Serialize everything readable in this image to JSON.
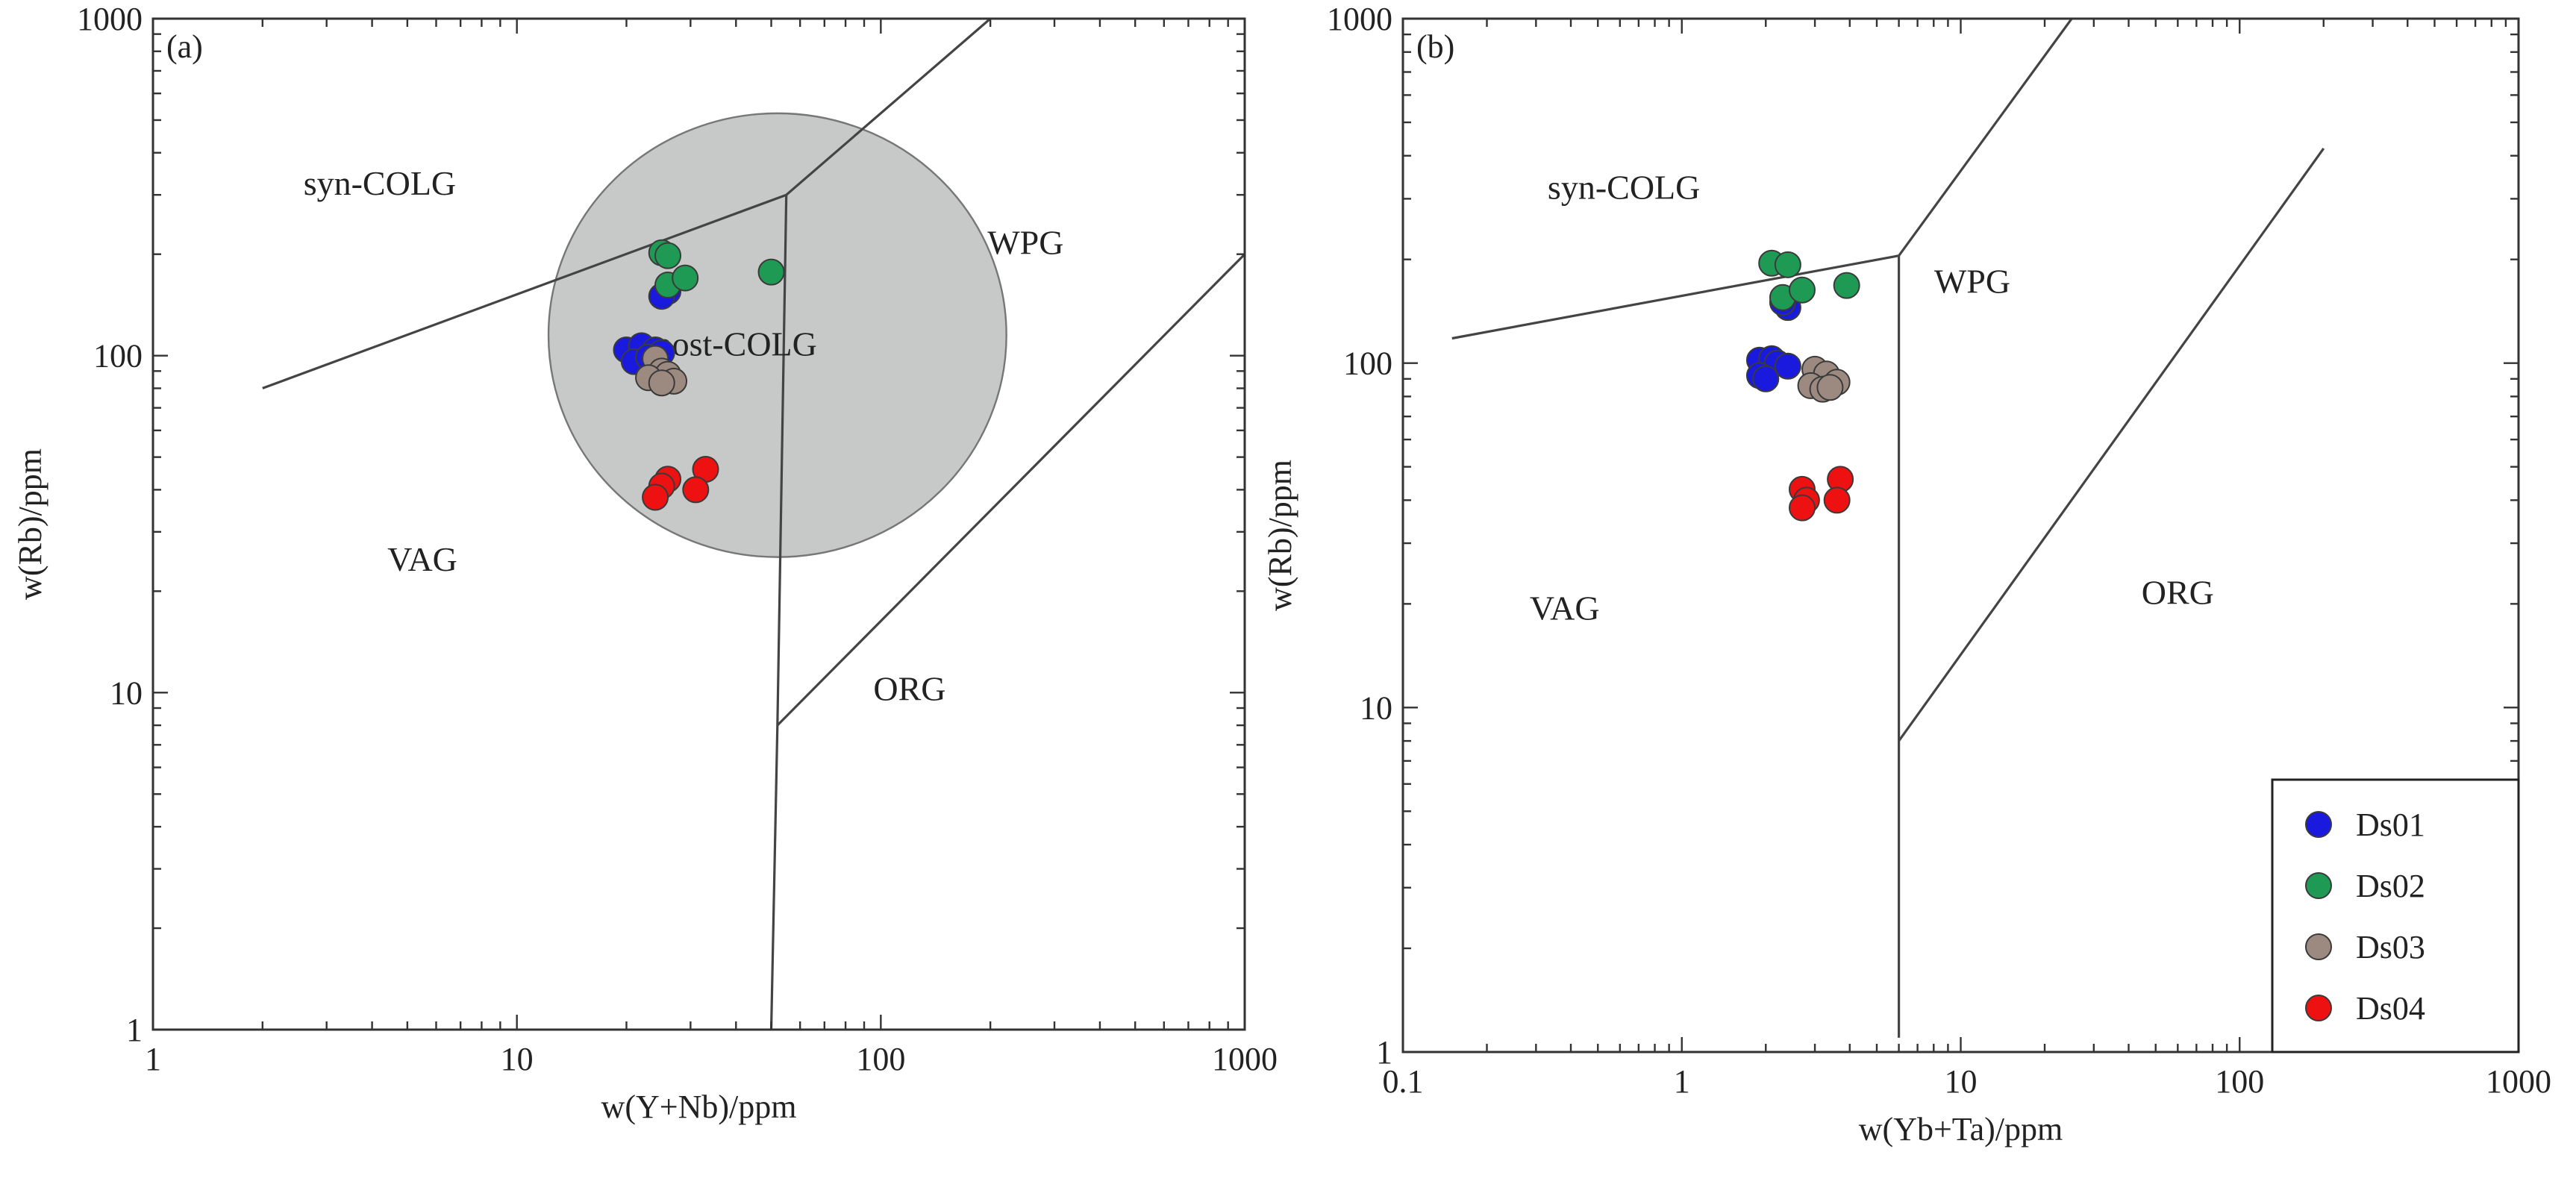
{
  "chart_data": [
    {
      "type": "scatter",
      "panel_label": "(a)",
      "xlabel": "w(Y+Nb)/ppm",
      "ylabel": "w(Rb)/ppm",
      "x_scale": "log",
      "y_scale": "log",
      "xlim": [
        1,
        1000
      ],
      "ylim": [
        1,
        1000
      ],
      "x_tick_labels": [
        "1",
        "10",
        "100",
        "1000"
      ],
      "y_tick_labels": [
        "1",
        "10",
        "100",
        "1000"
      ],
      "grid": false,
      "field_labels": [
        {
          "text": "syn-COLG",
          "x": 4.2,
          "y": 300
        },
        {
          "text": "WPG",
          "x": 250,
          "y": 200
        },
        {
          "text": "post-COLG",
          "x": 40,
          "y": 100
        },
        {
          "text": "VAG",
          "x": 5.5,
          "y": 23
        },
        {
          "text": "ORG",
          "x": 120,
          "y": 9.5
        }
      ],
      "boundaries": [
        [
          [
            2,
            80
          ],
          [
            55,
            300
          ],
          [
            200,
            1000
          ]
        ],
        [
          [
            55,
            300
          ],
          [
            52,
            8
          ],
          [
            50,
            1
          ]
        ],
        [
          [
            52,
            8
          ],
          [
            1000,
            200
          ]
        ]
      ],
      "post_colg_field": {
        "center": [
          52,
          115
        ],
        "x_range": [
          16,
          290
        ],
        "y_range": [
          27,
          560
        ],
        "color": "#c7c9c9"
      },
      "series": [
        {
          "name": "Ds01",
          "color": "#1a1adf",
          "points": [
            [
              20,
              104
            ],
            [
              22,
              107
            ],
            [
              24,
              104
            ],
            [
              21,
              96
            ],
            [
              23,
              99
            ],
            [
              25,
              102
            ],
            [
              26,
              155
            ],
            [
              25,
              150
            ]
          ]
        },
        {
          "name": "Ds02",
          "color": "#1f9a55",
          "points": [
            [
              25,
              202
            ],
            [
              26,
              198
            ],
            [
              26,
              162
            ],
            [
              29,
              170
            ],
            [
              50,
              177
            ]
          ]
        },
        {
          "name": "Ds03",
          "color": "#9c8a80",
          "points": [
            [
              24,
              98
            ],
            [
              25,
              90
            ],
            [
              26,
              88
            ],
            [
              23,
              86
            ],
            [
              27,
              84
            ],
            [
              25,
              83
            ]
          ]
        },
        {
          "name": "Ds04",
          "color": "#ee1111",
          "points": [
            [
              26,
              43
            ],
            [
              25,
              41
            ],
            [
              24,
              38
            ],
            [
              33,
              46
            ],
            [
              31,
              40
            ]
          ]
        }
      ]
    },
    {
      "type": "scatter",
      "panel_label": "(b)",
      "xlabel": "w(Yb+Ta)/ppm",
      "ylabel": "w(Rb)/ppm",
      "x_scale": "log",
      "y_scale": "log",
      "xlim": [
        0.1,
        1000
      ],
      "ylim": [
        1,
        1000
      ],
      "x_tick_labels": [
        "0.1",
        "1",
        "10",
        "100",
        "1000"
      ],
      "y_tick_labels": [
        "1",
        "10",
        "100",
        "1000"
      ],
      "grid": false,
      "field_labels": [
        {
          "text": "syn-COLG",
          "x": 0.62,
          "y": 300
        },
        {
          "text": "WPG",
          "x": 11,
          "y": 160
        },
        {
          "text": "VAG",
          "x": 0.38,
          "y": 18
        },
        {
          "text": "ORG",
          "x": 60,
          "y": 20
        }
      ],
      "boundaries": [
        [
          [
            0.15,
            118
          ],
          [
            6,
            205
          ],
          [
            25,
            1000
          ]
        ],
        [
          [
            6,
            205
          ],
          [
            6,
            1.1
          ]
        ],
        [
          [
            6,
            8
          ],
          [
            200,
            420
          ]
        ]
      ],
      "legend": {
        "position": "bottom-right",
        "entries": [
          "Ds01",
          "Ds02",
          "Ds03",
          "Ds04"
        ]
      },
      "series": [
        {
          "name": "Ds01",
          "color": "#1a1adf",
          "points": [
            [
              1.9,
              102
            ],
            [
              2.1,
              103
            ],
            [
              2.2,
              100
            ],
            [
              2.4,
              98
            ],
            [
              1.9,
              92
            ],
            [
              2.0,
              90
            ],
            [
              2.4,
              145
            ],
            [
              2.3,
              150
            ]
          ]
        },
        {
          "name": "Ds02",
          "color": "#1f9a55",
          "points": [
            [
              2.1,
              195
            ],
            [
              2.4,
              193
            ],
            [
              2.3,
              155
            ],
            [
              2.7,
              163
            ],
            [
              3.9,
              168
            ]
          ]
        },
        {
          "name": "Ds03",
          "color": "#9c8a80",
          "points": [
            [
              3.0,
              96
            ],
            [
              3.3,
              93
            ],
            [
              3.6,
              88
            ],
            [
              2.9,
              86
            ],
            [
              3.2,
              84
            ],
            [
              3.4,
              85
            ]
          ]
        },
        {
          "name": "Ds04",
          "color": "#ee1111",
          "points": [
            [
              2.7,
              43
            ],
            [
              2.8,
              40
            ],
            [
              2.7,
              38
            ],
            [
              3.7,
              46
            ],
            [
              3.6,
              40
            ]
          ]
        }
      ]
    }
  ]
}
